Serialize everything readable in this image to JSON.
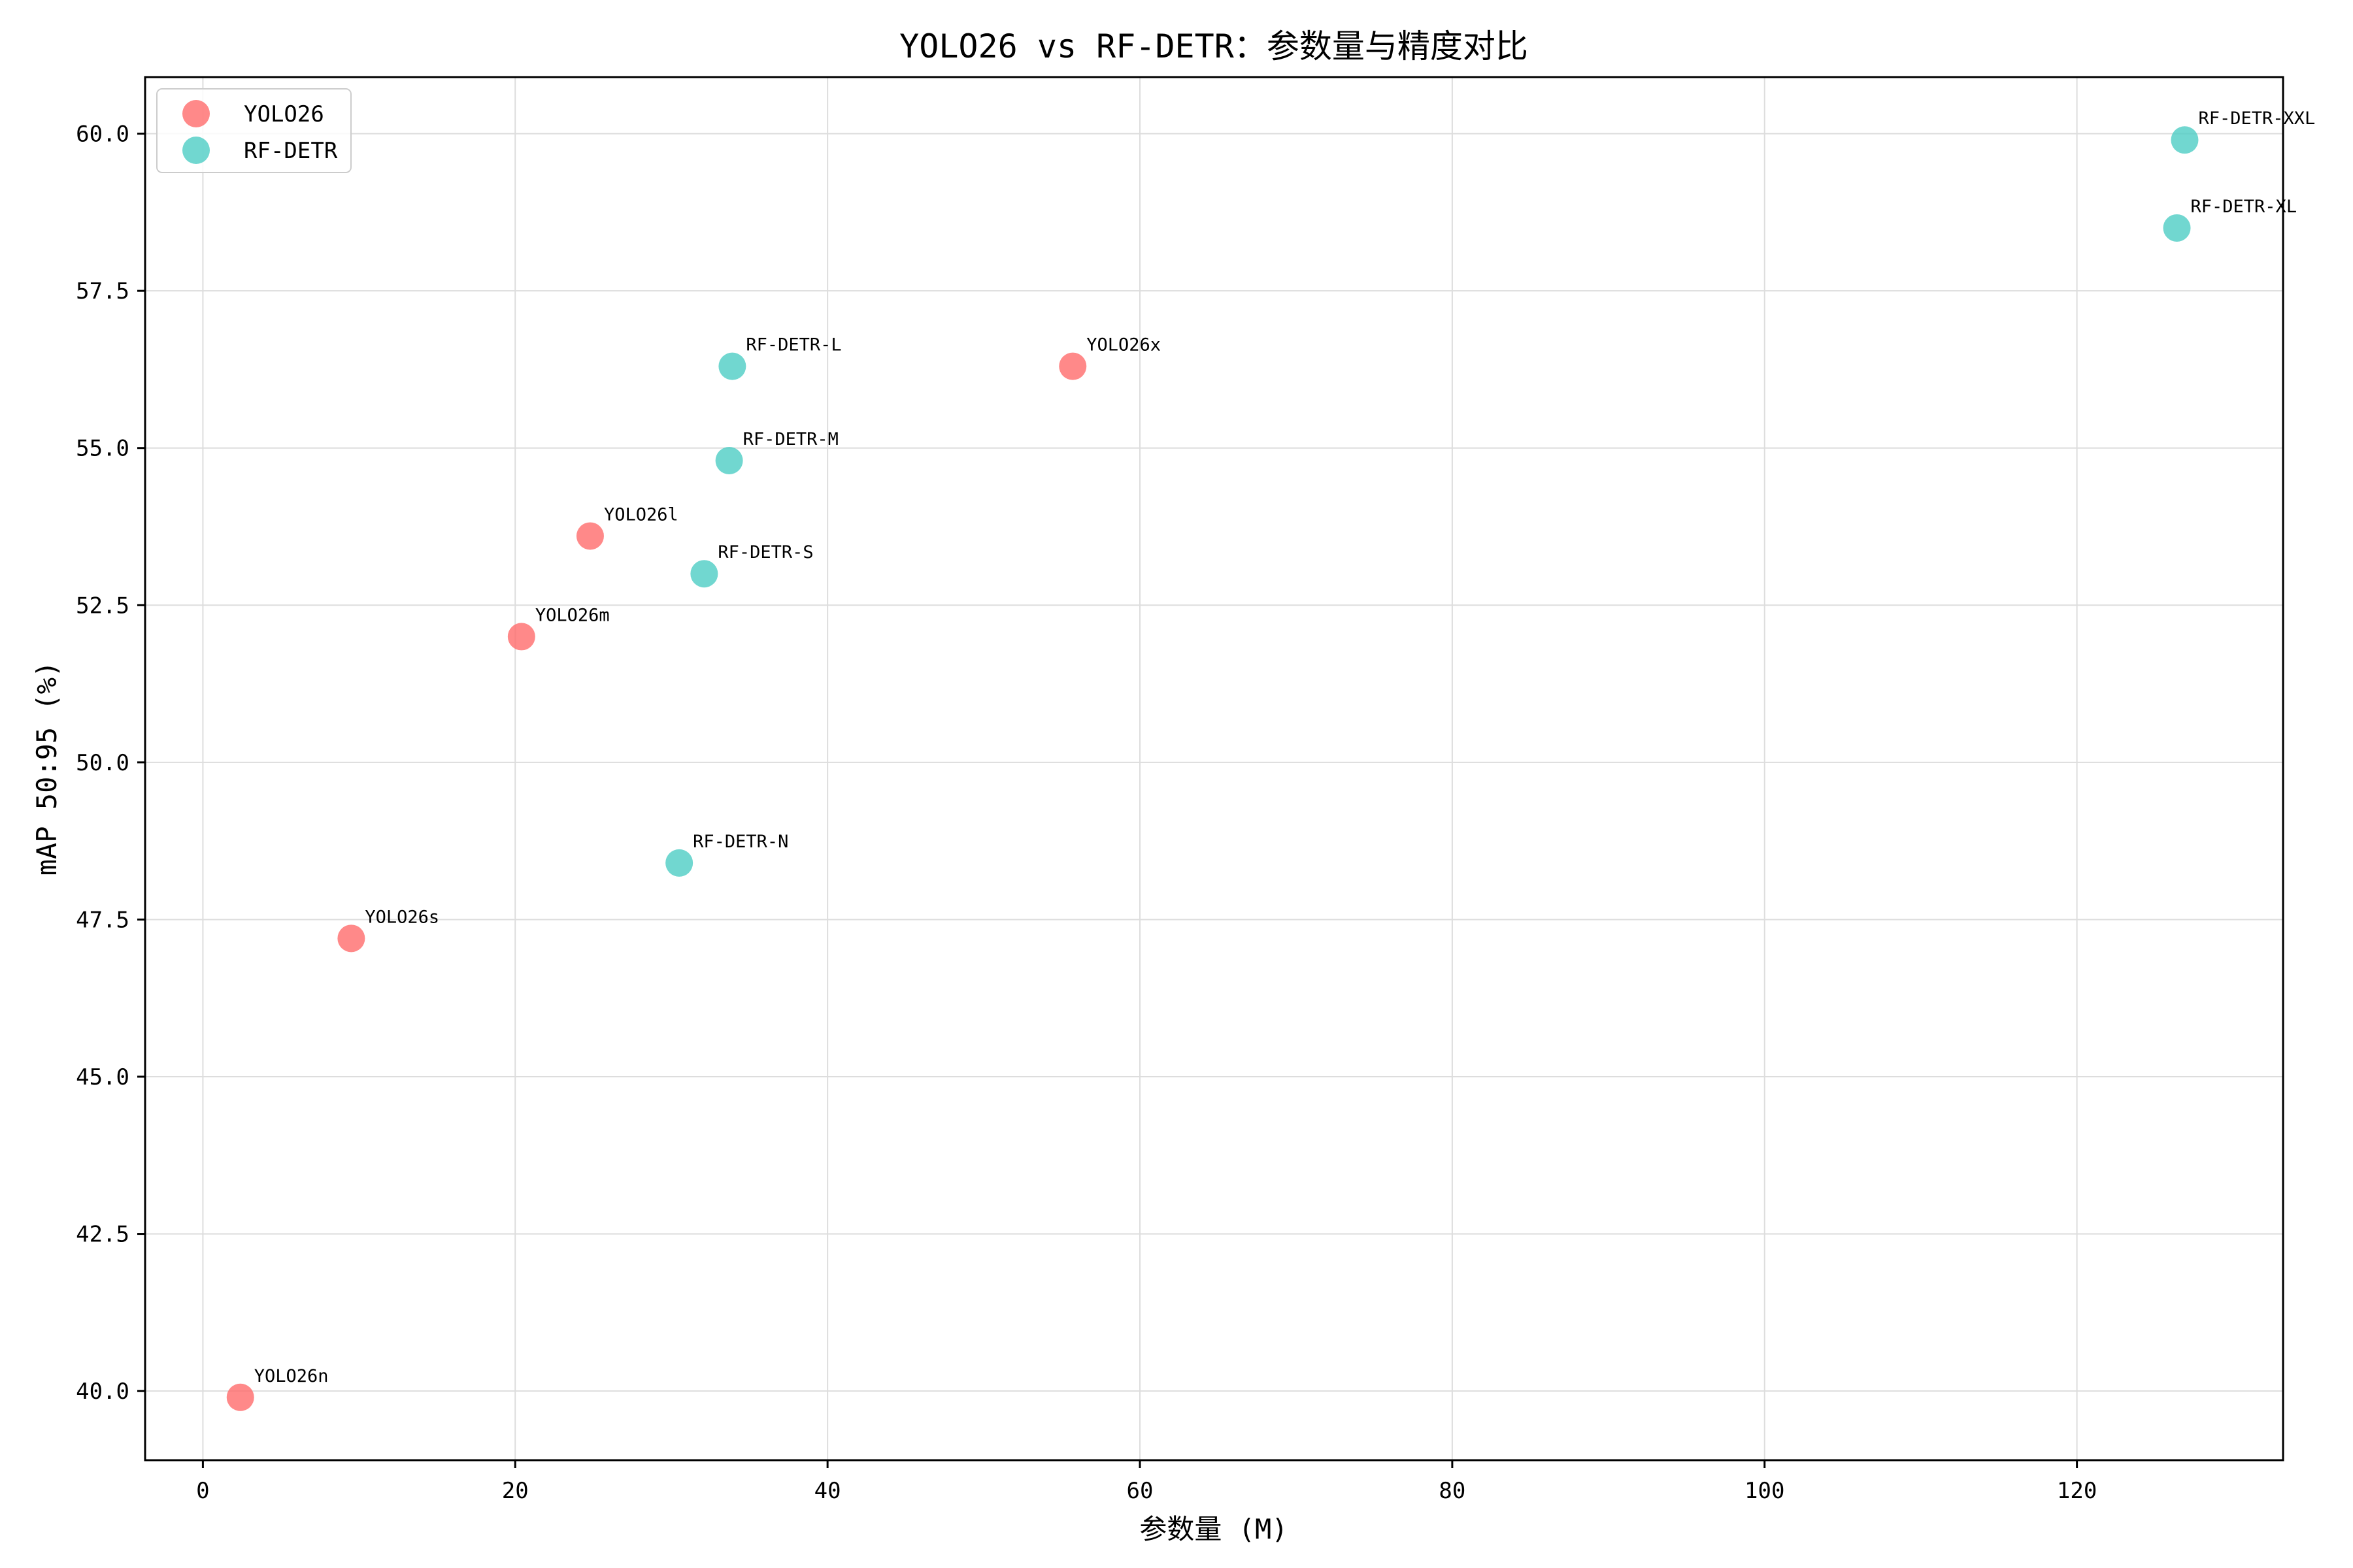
{
  "chart_data": {
    "type": "scatter",
    "title": "YOLO26 vs RF-DETR：参数量与精度对比",
    "xlabel": "参数量 (M)",
    "ylabel": "mAP 50:95 (%)",
    "xlim": [
      -3.7,
      133.2
    ],
    "ylim": [
      38.9,
      60.9
    ],
    "xticks": [
      0,
      20,
      40,
      60,
      80,
      100,
      120
    ],
    "xtick_labels": [
      "0",
      "20",
      "40",
      "60",
      "80",
      "100",
      "120"
    ],
    "yticks": [
      40.0,
      42.5,
      45.0,
      47.5,
      50.0,
      52.5,
      55.0,
      57.5,
      60.0
    ],
    "ytick_labels": [
      "40.0",
      "42.5",
      "45.0",
      "47.5",
      "50.0",
      "52.5",
      "55.0",
      "57.5",
      "60.0"
    ],
    "grid": true,
    "legend_position": "top-left",
    "series": [
      {
        "name": "YOLO26",
        "color": "#ff6b6b",
        "points": [
          {
            "label": "YOLO26n",
            "x": 2.4,
            "y": 39.9
          },
          {
            "label": "YOLO26s",
            "x": 9.5,
            "y": 47.2
          },
          {
            "label": "YOLO26m",
            "x": 20.4,
            "y": 52.0
          },
          {
            "label": "YOLO26l",
            "x": 24.8,
            "y": 53.6
          },
          {
            "label": "YOLO26x",
            "x": 55.7,
            "y": 56.3
          }
        ]
      },
      {
        "name": "RF-DETR",
        "color": "#4ecdc4",
        "points": [
          {
            "label": "RF-DETR-N",
            "x": 30.5,
            "y": 48.4
          },
          {
            "label": "RF-DETR-S",
            "x": 32.1,
            "y": 53.0
          },
          {
            "label": "RF-DETR-M",
            "x": 33.7,
            "y": 54.8
          },
          {
            "label": "RF-DETR-L",
            "x": 33.9,
            "y": 56.3
          },
          {
            "label": "RF-DETR-XL",
            "x": 126.4,
            "y": 58.5
          },
          {
            "label": "RF-DETR-XXL",
            "x": 126.9,
            "y": 59.9
          }
        ]
      }
    ]
  }
}
